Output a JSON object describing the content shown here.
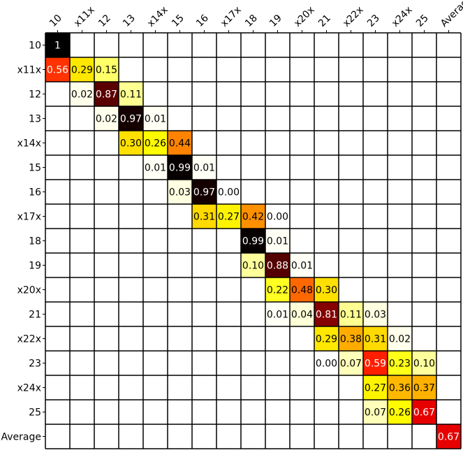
{
  "chart_data": {
    "type": "heatmap",
    "title": "",
    "xlabel": "",
    "ylabel": "",
    "x_labels": [
      "10",
      "x11x",
      "12",
      "13",
      "x14x",
      "15",
      "16",
      "x17x",
      "18",
      "19",
      "x20x",
      "21",
      "x22x",
      "23",
      "x24x",
      "25",
      "Average"
    ],
    "y_labels": [
      "10",
      "x11x",
      "12",
      "13",
      "x14x",
      "15",
      "16",
      "x17x",
      "18",
      "19",
      "x20x",
      "21",
      "x22x",
      "23",
      "x24x",
      "25",
      "Average"
    ],
    "colormap": "hot_r",
    "value_range": [
      0,
      1
    ],
    "grid": true,
    "cells": [
      {
        "row": 0,
        "col": 0,
        "value": 1,
        "label": "1"
      },
      {
        "row": 1,
        "col": 0,
        "value": 0.56,
        "label": "0.56"
      },
      {
        "row": 1,
        "col": 1,
        "value": 0.29,
        "label": "0.29"
      },
      {
        "row": 1,
        "col": 2,
        "value": 0.15,
        "label": "0.15"
      },
      {
        "row": 2,
        "col": 1,
        "value": 0.02,
        "label": "0.02"
      },
      {
        "row": 2,
        "col": 2,
        "value": 0.87,
        "label": "0.87"
      },
      {
        "row": 2,
        "col": 3,
        "value": 0.11,
        "label": "0.11"
      },
      {
        "row": 3,
        "col": 2,
        "value": 0.02,
        "label": "0.02"
      },
      {
        "row": 3,
        "col": 3,
        "value": 0.97,
        "label": "0.97"
      },
      {
        "row": 3,
        "col": 4,
        "value": 0.01,
        "label": "0.01"
      },
      {
        "row": 4,
        "col": 3,
        "value": 0.3,
        "label": "0.30"
      },
      {
        "row": 4,
        "col": 4,
        "value": 0.26,
        "label": "0.26"
      },
      {
        "row": 4,
        "col": 5,
        "value": 0.44,
        "label": "0.44"
      },
      {
        "row": 5,
        "col": 4,
        "value": 0.01,
        "label": "0.01"
      },
      {
        "row": 5,
        "col": 5,
        "value": 0.99,
        "label": "0.99"
      },
      {
        "row": 5,
        "col": 6,
        "value": 0.01,
        "label": "0.01"
      },
      {
        "row": 6,
        "col": 5,
        "value": 0.03,
        "label": "0.03"
      },
      {
        "row": 6,
        "col": 6,
        "value": 0.97,
        "label": "0.97"
      },
      {
        "row": 6,
        "col": 7,
        "value": 0.0,
        "label": "0.00"
      },
      {
        "row": 7,
        "col": 6,
        "value": 0.31,
        "label": "0.31"
      },
      {
        "row": 7,
        "col": 7,
        "value": 0.27,
        "label": "0.27"
      },
      {
        "row": 7,
        "col": 8,
        "value": 0.42,
        "label": "0.42"
      },
      {
        "row": 7,
        "col": 9,
        "value": 0.0,
        "label": "0.00"
      },
      {
        "row": 8,
        "col": 8,
        "value": 0.99,
        "label": "0.99"
      },
      {
        "row": 8,
        "col": 9,
        "value": 0.01,
        "label": "0.01"
      },
      {
        "row": 9,
        "col": 8,
        "value": 0.1,
        "label": "0.10"
      },
      {
        "row": 9,
        "col": 9,
        "value": 0.88,
        "label": "0.88"
      },
      {
        "row": 9,
        "col": 10,
        "value": 0.01,
        "label": "0.01"
      },
      {
        "row": 10,
        "col": 9,
        "value": 0.22,
        "label": "0.22"
      },
      {
        "row": 10,
        "col": 10,
        "value": 0.48,
        "label": "0.48"
      },
      {
        "row": 10,
        "col": 11,
        "value": 0.3,
        "label": "0.30"
      },
      {
        "row": 11,
        "col": 9,
        "value": 0.01,
        "label": "0.01"
      },
      {
        "row": 11,
        "col": 10,
        "value": 0.04,
        "label": "0.04"
      },
      {
        "row": 11,
        "col": 11,
        "value": 0.81,
        "label": "0.81"
      },
      {
        "row": 11,
        "col": 12,
        "value": 0.11,
        "label": "0.11"
      },
      {
        "row": 11,
        "col": 13,
        "value": 0.03,
        "label": "0.03"
      },
      {
        "row": 12,
        "col": 11,
        "value": 0.29,
        "label": "0.29"
      },
      {
        "row": 12,
        "col": 12,
        "value": 0.38,
        "label": "0.38"
      },
      {
        "row": 12,
        "col": 13,
        "value": 0.31,
        "label": "0.31"
      },
      {
        "row": 12,
        "col": 14,
        "value": 0.02,
        "label": "0.02"
      },
      {
        "row": 13,
        "col": 11,
        "value": 0.0,
        "label": "0.00"
      },
      {
        "row": 13,
        "col": 12,
        "value": 0.07,
        "label": "0.07"
      },
      {
        "row": 13,
        "col": 13,
        "value": 0.59,
        "label": "0.59"
      },
      {
        "row": 13,
        "col": 14,
        "value": 0.23,
        "label": "0.23"
      },
      {
        "row": 13,
        "col": 15,
        "value": 0.1,
        "label": "0.10"
      },
      {
        "row": 14,
        "col": 13,
        "value": 0.27,
        "label": "0.27"
      },
      {
        "row": 14,
        "col": 14,
        "value": 0.36,
        "label": "0.36"
      },
      {
        "row": 14,
        "col": 15,
        "value": 0.37,
        "label": "0.37"
      },
      {
        "row": 15,
        "col": 13,
        "value": 0.07,
        "label": "0.07"
      },
      {
        "row": 15,
        "col": 14,
        "value": 0.26,
        "label": "0.26"
      },
      {
        "row": 15,
        "col": 15,
        "value": 0.67,
        "label": "0.67"
      },
      {
        "row": 16,
        "col": 16,
        "value": 0.67,
        "label": "0.67"
      }
    ]
  },
  "colors": {
    "grid_line": "#000000",
    "background": "#ffffff",
    "text_dark": "#000000",
    "text_light": "#ffffff"
  }
}
